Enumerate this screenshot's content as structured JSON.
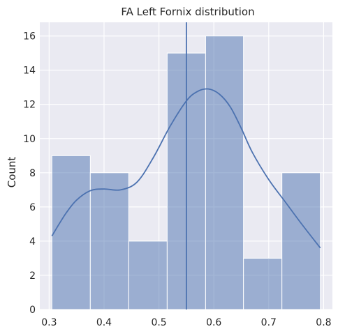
{
  "chart_data": {
    "type": "bar",
    "subtype": "histogram_with_kde",
    "title": "FA Left Fornix distribution",
    "xlabel": "",
    "ylabel": "Count",
    "xlim": [
      0.283,
      0.816
    ],
    "ylim": [
      0,
      16.8
    ],
    "x_ticks": [
      0.3,
      0.4,
      0.5,
      0.6,
      0.7,
      0.8
    ],
    "x_tick_labels": [
      "0.3",
      "0.4",
      "0.5",
      "0.6",
      "0.7",
      "0.8"
    ],
    "y_ticks": [
      0,
      2,
      4,
      6,
      8,
      10,
      12,
      14,
      16
    ],
    "y_tick_labels": [
      "0",
      "2",
      "4",
      "6",
      "8",
      "10",
      "12",
      "14",
      "16"
    ],
    "bins": [
      {
        "start": 0.305,
        "end": 0.375,
        "count": 9
      },
      {
        "start": 0.375,
        "end": 0.445,
        "count": 8
      },
      {
        "start": 0.445,
        "end": 0.515,
        "count": 4
      },
      {
        "start": 0.515,
        "end": 0.585,
        "count": 15
      },
      {
        "start": 0.585,
        "end": 0.654,
        "count": 16
      },
      {
        "start": 0.654,
        "end": 0.724,
        "count": 3
      },
      {
        "start": 0.724,
        "end": 0.794,
        "count": 8
      }
    ],
    "kde": {
      "x": [
        0.305,
        0.33,
        0.35,
        0.375,
        0.4,
        0.43,
        0.46,
        0.49,
        0.52,
        0.55,
        0.57,
        0.59,
        0.61,
        0.63,
        0.65,
        0.67,
        0.7,
        0.73,
        0.76,
        0.794
      ],
      "y": [
        4.3,
        5.6,
        6.4,
        6.95,
        7.05,
        7.0,
        7.45,
        8.9,
        10.7,
        12.2,
        12.75,
        12.9,
        12.6,
        11.85,
        10.6,
        9.2,
        7.6,
        6.3,
        5.0,
        3.6
      ]
    },
    "vline": {
      "x": 0.55
    },
    "grid": true,
    "colors": {
      "bar_fill": "#4c72b0",
      "bar_fill_opacity": 0.5,
      "bar_edge": "#ffffff",
      "kde_line": "#4c72b0",
      "vline": "#4c72b0",
      "plot_background": "#eaeaf2",
      "grid": "#ffffff"
    }
  }
}
